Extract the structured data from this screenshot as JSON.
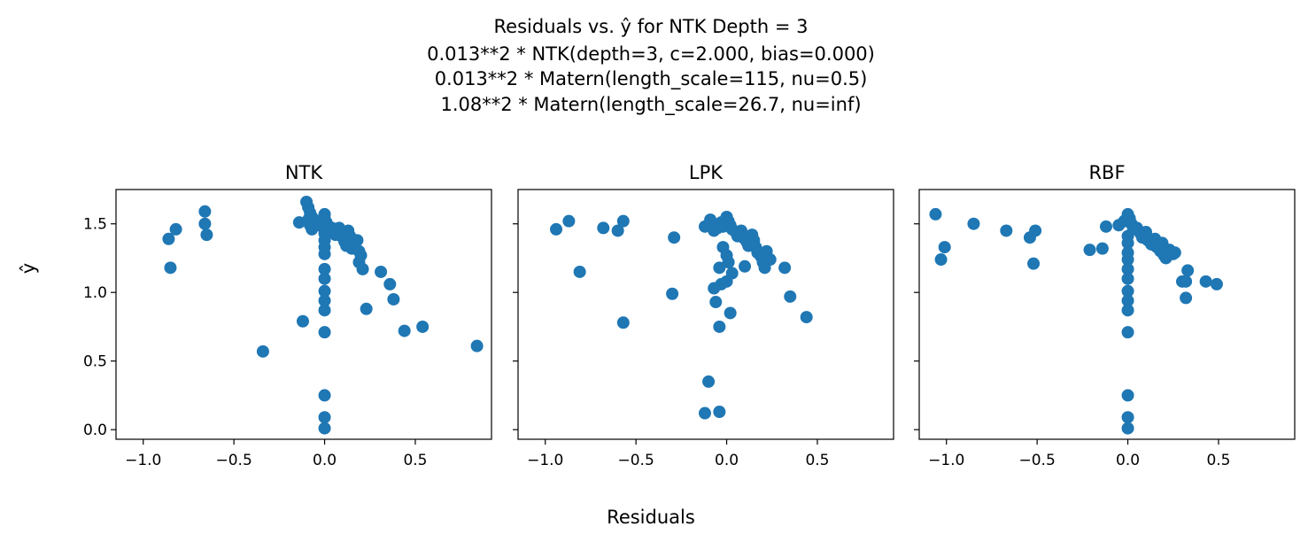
{
  "figure": {
    "title_lines": [
      "Residuals vs. ŷ for NTK Depth = 3",
      "0.013**2 * NTK(depth=3, c=2.000, bias=0.000)",
      "0.013**2 * Matern(length_scale=115, nu=0.5)",
      "1.08**2 * Matern(length_scale=26.7, nu=inf)"
    ],
    "xlabel": "Residuals",
    "ylabel": "ŷ"
  },
  "chart_data": [
    {
      "type": "scatter",
      "title": "NTK",
      "xlim": [
        -1.15,
        0.92
      ],
      "ylim": [
        -0.07,
        1.75
      ],
      "xticks": [
        -1.0,
        -0.5,
        0.0,
        0.5
      ],
      "xtick_labels": [
        "−1.0",
        "−0.5",
        "0.0",
        "0.5"
      ],
      "yticks": [
        0.0,
        0.5,
        1.0,
        1.5
      ],
      "ytick_labels": [
        "0.0",
        "0.5",
        "1.0",
        "1.5"
      ],
      "show_yticklabels": true,
      "color": "#1f77b4",
      "points": [
        [
          -0.86,
          1.39
        ],
        [
          -0.82,
          1.46
        ],
        [
          -0.85,
          1.18
        ],
        [
          -0.66,
          1.59
        ],
        [
          -0.66,
          1.5
        ],
        [
          -0.65,
          1.42
        ],
        [
          -0.34,
          0.57
        ],
        [
          -0.12,
          0.79
        ],
        [
          -0.14,
          1.51
        ],
        [
          -0.1,
          1.66
        ],
        [
          -0.09,
          1.62
        ],
        [
          -0.08,
          1.58
        ],
        [
          -0.07,
          1.55
        ],
        [
          -0.09,
          1.53
        ],
        [
          -0.08,
          1.49
        ],
        [
          -0.07,
          1.46
        ],
        [
          -0.04,
          1.52
        ],
        [
          -0.03,
          1.49
        ],
        [
          0.0,
          1.57
        ],
        [
          0.0,
          1.54
        ],
        [
          0.01,
          1.51
        ],
        [
          0.02,
          1.48
        ],
        [
          0.04,
          1.47
        ],
        [
          0.05,
          1.45
        ],
        [
          0.06,
          1.42
        ],
        [
          0.08,
          1.47
        ],
        [
          0.09,
          1.44
        ],
        [
          0.1,
          1.4
        ],
        [
          0.11,
          1.37
        ],
        [
          0.12,
          1.34
        ],
        [
          0.13,
          1.45
        ],
        [
          0.14,
          1.41
        ],
        [
          0.15,
          1.32
        ],
        [
          0.16,
          1.36
        ],
        [
          0.18,
          1.38
        ],
        [
          0.19,
          1.3
        ],
        [
          0.2,
          1.27
        ],
        [
          0.19,
          1.22
        ],
        [
          0.21,
          1.17
        ],
        [
          0.31,
          1.15
        ],
        [
          0.36,
          1.06
        ],
        [
          0.38,
          0.95
        ],
        [
          0.23,
          0.88
        ],
        [
          0.44,
          0.72
        ],
        [
          0.54,
          0.75
        ],
        [
          0.84,
          0.61
        ],
        [
          0.0,
          1.43
        ],
        [
          0.0,
          1.38
        ],
        [
          0.0,
          1.33
        ],
        [
          0.0,
          1.28
        ],
        [
          0.0,
          1.17
        ],
        [
          0.0,
          1.1
        ],
        [
          0.0,
          1.01
        ],
        [
          0.0,
          0.94
        ],
        [
          0.0,
          0.87
        ],
        [
          0.0,
          0.71
        ],
        [
          0.0,
          0.25
        ],
        [
          0.0,
          0.09
        ],
        [
          0.0,
          0.01
        ]
      ]
    },
    {
      "type": "scatter",
      "title": "LPK",
      "xlim": [
        -1.15,
        0.92
      ],
      "ylim": [
        -0.07,
        1.75
      ],
      "xticks": [
        -1.0,
        -0.5,
        0.0,
        0.5
      ],
      "xtick_labels": [
        "−1.0",
        "−0.5",
        "0.0",
        "0.5"
      ],
      "yticks": [
        0.0,
        0.5,
        1.0,
        1.5
      ],
      "ytick_labels": [
        "0.0",
        "0.5",
        "1.0",
        "1.5"
      ],
      "show_yticklabels": false,
      "color": "#1f77b4",
      "points": [
        [
          -0.94,
          1.46
        ],
        [
          -0.87,
          1.52
        ],
        [
          -0.81,
          1.15
        ],
        [
          -0.68,
          1.47
        ],
        [
          -0.6,
          1.45
        ],
        [
          -0.57,
          1.52
        ],
        [
          -0.57,
          0.78
        ],
        [
          -0.29,
          1.4
        ],
        [
          -0.3,
          0.99
        ],
        [
          -0.12,
          1.48
        ],
        [
          -0.09,
          1.53
        ],
        [
          -0.07,
          1.45
        ],
        [
          -0.05,
          1.47
        ],
        [
          -0.03,
          1.51
        ],
        [
          -0.02,
          1.48
        ],
        [
          0.0,
          1.55
        ],
        [
          0.01,
          1.52
        ],
        [
          0.02,
          1.49
        ],
        [
          0.03,
          1.46
        ],
        [
          0.05,
          1.44
        ],
        [
          0.06,
          1.41
        ],
        [
          0.08,
          1.45
        ],
        [
          0.09,
          1.4
        ],
        [
          0.11,
          1.37
        ],
        [
          0.12,
          1.34
        ],
        [
          0.14,
          1.42
        ],
        [
          0.15,
          1.38
        ],
        [
          0.16,
          1.33
        ],
        [
          0.17,
          1.29
        ],
        [
          0.19,
          1.26
        ],
        [
          0.2,
          1.22
        ],
        [
          0.21,
          1.18
        ],
        [
          0.22,
          1.3
        ],
        [
          0.24,
          1.24
        ],
        [
          0.32,
          1.18
        ],
        [
          0.35,
          0.97
        ],
        [
          0.44,
          0.82
        ],
        [
          -0.02,
          1.33
        ],
        [
          0.0,
          1.27
        ],
        [
          0.01,
          1.22
        ],
        [
          0.03,
          1.14
        ],
        [
          0.0,
          1.08
        ],
        [
          -0.04,
          1.18
        ],
        [
          -0.03,
          1.06
        ],
        [
          -0.07,
          1.03
        ],
        [
          -0.06,
          0.93
        ],
        [
          0.02,
          0.85
        ],
        [
          -0.04,
          0.75
        ],
        [
          0.1,
          1.19
        ],
        [
          -0.1,
          0.35
        ],
        [
          -0.12,
          0.12
        ],
        [
          -0.04,
          0.13
        ]
      ]
    },
    {
      "type": "scatter",
      "title": "RBF",
      "xlim": [
        -1.15,
        0.92
      ],
      "ylim": [
        -0.07,
        1.75
      ],
      "xticks": [
        -1.0,
        -0.5,
        0.0,
        0.5
      ],
      "xtick_labels": [
        "−1.0",
        "−0.5",
        "0.0",
        "0.5"
      ],
      "yticks": [
        0.0,
        0.5,
        1.0,
        1.5
      ],
      "ytick_labels": [
        "0.0",
        "0.5",
        "1.0",
        "1.5"
      ],
      "show_yticklabels": false,
      "color": "#1f77b4",
      "points": [
        [
          -1.06,
          1.57
        ],
        [
          -1.01,
          1.33
        ],
        [
          -1.03,
          1.24
        ],
        [
          -0.85,
          1.5
        ],
        [
          -0.67,
          1.45
        ],
        [
          -0.54,
          1.4
        ],
        [
          -0.51,
          1.45
        ],
        [
          -0.52,
          1.21
        ],
        [
          -0.21,
          1.31
        ],
        [
          -0.14,
          1.32
        ],
        [
          -0.12,
          1.48
        ],
        [
          -0.05,
          1.49
        ],
        [
          -0.02,
          1.52
        ],
        [
          0.0,
          1.57
        ],
        [
          0.01,
          1.54
        ],
        [
          0.02,
          1.5
        ],
        [
          0.03,
          1.46
        ],
        [
          0.05,
          1.47
        ],
        [
          0.07,
          1.43
        ],
        [
          0.08,
          1.4
        ],
        [
          0.1,
          1.44
        ],
        [
          0.11,
          1.38
        ],
        [
          0.13,
          1.35
        ],
        [
          0.15,
          1.39
        ],
        [
          0.16,
          1.33
        ],
        [
          0.18,
          1.3
        ],
        [
          0.19,
          1.36
        ],
        [
          0.2,
          1.27
        ],
        [
          0.21,
          1.25
        ],
        [
          0.23,
          1.31
        ],
        [
          0.25,
          1.28
        ],
        [
          0.26,
          1.29
        ],
        [
          0.3,
          1.08
        ],
        [
          0.32,
          1.08
        ],
        [
          0.33,
          1.16
        ],
        [
          0.32,
          0.96
        ],
        [
          0.43,
          1.08
        ],
        [
          0.49,
          1.06
        ],
        [
          0.0,
          1.41
        ],
        [
          0.0,
          1.36
        ],
        [
          0.0,
          1.29
        ],
        [
          0.0,
          1.24
        ],
        [
          0.0,
          1.17
        ],
        [
          0.0,
          1.1
        ],
        [
          0.0,
          1.01
        ],
        [
          0.0,
          0.94
        ],
        [
          0.0,
          0.87
        ],
        [
          0.0,
          0.71
        ],
        [
          0.0,
          0.25
        ],
        [
          0.0,
          0.09
        ],
        [
          0.0,
          0.01
        ]
      ]
    }
  ]
}
